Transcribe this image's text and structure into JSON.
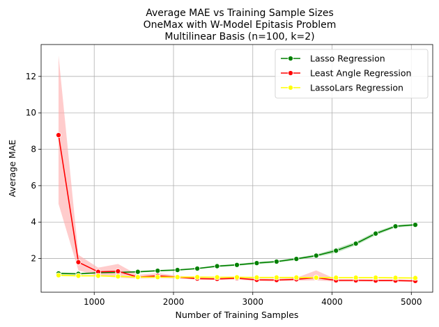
{
  "chart_data": {
    "type": "line",
    "title_lines": [
      "Average MAE vs Training Sample Sizes",
      "OneMax with W-Model Epitasis Problem",
      "Multilinear Basis (n=100, k=2)"
    ],
    "xlabel": "Number of Training Samples",
    "ylabel": "Average MAE",
    "xlim": [
      330,
      5270
    ],
    "ylim": [
      0.15,
      13.75
    ],
    "xticks": [
      1000,
      2000,
      3000,
      4000,
      5000
    ],
    "yticks": [
      2,
      4,
      6,
      8,
      10,
      12
    ],
    "grid": true,
    "legend_position": "upper-right",
    "x": [
      550,
      800,
      1050,
      1300,
      1550,
      1800,
      2050,
      2300,
      2550,
      2800,
      3050,
      3300,
      3550,
      3800,
      4050,
      4300,
      4550,
      4800,
      5050
    ],
    "series": [
      {
        "name": "Lasso Regression",
        "color": "#008000",
        "band_color": "#8fd18f",
        "values": [
          1.18,
          1.16,
          1.22,
          1.24,
          1.27,
          1.33,
          1.37,
          1.45,
          1.58,
          1.65,
          1.75,
          1.83,
          1.98,
          2.16,
          2.43,
          2.82,
          3.37,
          3.77,
          3.85
        ],
        "lower": [
          1.12,
          1.12,
          1.18,
          1.2,
          1.23,
          1.29,
          1.33,
          1.41,
          1.53,
          1.6,
          1.69,
          1.77,
          1.92,
          2.09,
          2.32,
          2.72,
          3.27,
          3.7,
          3.8
        ],
        "upper": [
          1.24,
          1.2,
          1.26,
          1.28,
          1.31,
          1.37,
          1.41,
          1.49,
          1.63,
          1.7,
          1.81,
          1.89,
          2.04,
          2.23,
          2.54,
          2.92,
          3.47,
          3.84,
          3.9
        ]
      },
      {
        "name": "Least Angle Regression",
        "color": "#ff0000",
        "band_color": "#ffaaaa",
        "values": [
          8.78,
          1.8,
          1.27,
          1.3,
          0.98,
          1.05,
          0.98,
          0.9,
          0.88,
          0.92,
          0.83,
          0.82,
          0.86,
          0.95,
          0.8,
          0.8,
          0.79,
          0.79,
          0.77
        ],
        "lower": [
          5.0,
          1.35,
          1.05,
          0.95,
          0.9,
          0.92,
          0.9,
          0.84,
          0.82,
          0.85,
          0.76,
          0.75,
          0.78,
          0.8,
          0.73,
          0.74,
          0.73,
          0.73,
          0.71
        ],
        "upper": [
          13.15,
          2.2,
          1.5,
          1.7,
          1.1,
          1.2,
          1.06,
          0.98,
          0.95,
          1.0,
          0.9,
          0.89,
          0.94,
          1.35,
          0.87,
          0.86,
          0.85,
          0.85,
          0.83
        ]
      },
      {
        "name": "LassoLars Regression",
        "color": "#ffff00",
        "band_color": "#ffffaa",
        "values": [
          1.08,
          1.05,
          1.05,
          1.02,
          0.98,
          0.98,
          0.98,
          0.98,
          0.97,
          0.97,
          0.96,
          0.96,
          0.96,
          0.95,
          0.95,
          0.95,
          0.95,
          0.94,
          0.93
        ],
        "lower": [
          1.03,
          1.01,
          1.01,
          0.98,
          0.94,
          0.94,
          0.94,
          0.94,
          0.93,
          0.93,
          0.92,
          0.92,
          0.92,
          0.91,
          0.91,
          0.91,
          0.91,
          0.9,
          0.89
        ],
        "upper": [
          1.13,
          1.09,
          1.09,
          1.06,
          1.02,
          1.02,
          1.02,
          1.02,
          1.01,
          1.01,
          1.0,
          1.0,
          1.0,
          0.99,
          0.99,
          0.99,
          0.99,
          0.98,
          0.97
        ]
      }
    ]
  }
}
